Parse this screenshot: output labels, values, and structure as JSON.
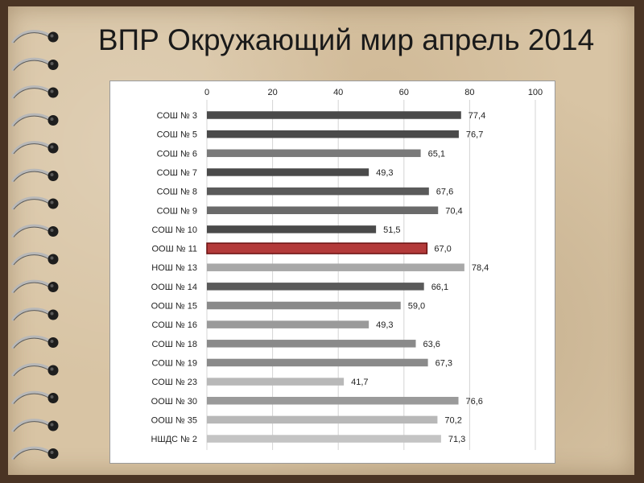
{
  "title": "ВПР Окружающий мир апрель 2014",
  "chart_data": {
    "type": "bar",
    "orientation": "horizontal",
    "title": "ВПР Окружающий мир апрель 2014",
    "xlim": [
      0,
      100
    ],
    "xticks": [
      "0",
      "20",
      "40",
      "60",
      "80",
      "100"
    ],
    "grid": true,
    "categories": [
      "СОШ № 3",
      "СОШ № 5",
      "СОШ № 6",
      "СОШ № 7",
      "СОШ № 8",
      "СОШ № 9",
      "СОШ № 10",
      "ООШ № 11",
      "НОШ № 13",
      "ООШ № 14",
      "ООШ № 15",
      "СОШ № 16",
      "СОШ № 18",
      "СОШ № 19",
      "СОШ № 23",
      "ООШ № 30",
      "ООШ № 35",
      "НШДС № 2"
    ],
    "values": [
      77.4,
      76.7,
      65.1,
      49.3,
      67.6,
      70.4,
      51.5,
      67.0,
      78.4,
      66.1,
      59.0,
      49.3,
      63.6,
      67.3,
      41.7,
      76.6,
      70.2,
      71.3
    ],
    "labels": [
      "77,4",
      "76,7",
      "65,1",
      "49,3",
      "67,6",
      "70,4",
      "51,5",
      "67,0",
      "78,4",
      "66,1",
      "59,0",
      "49,3",
      "63,6",
      "67,3",
      "41,7",
      "76,6",
      "70,2",
      "71,3"
    ],
    "colors": [
      "#4a4a4a",
      "#4a4a4a",
      "#7a7a7a",
      "#4a4a4a",
      "#5a5a5a",
      "#6a6a6a",
      "#4a4a4a",
      "#b33a3a",
      "#a8a8a8",
      "#5a5a5a",
      "#8a8a8a",
      "#9a9a9a",
      "#8a8a8a",
      "#8a8a8a",
      "#b8b8b8",
      "#9a9a9a",
      "#b8b8b8",
      "#c4c4c4"
    ],
    "highlight": "ООШ № 11"
  }
}
